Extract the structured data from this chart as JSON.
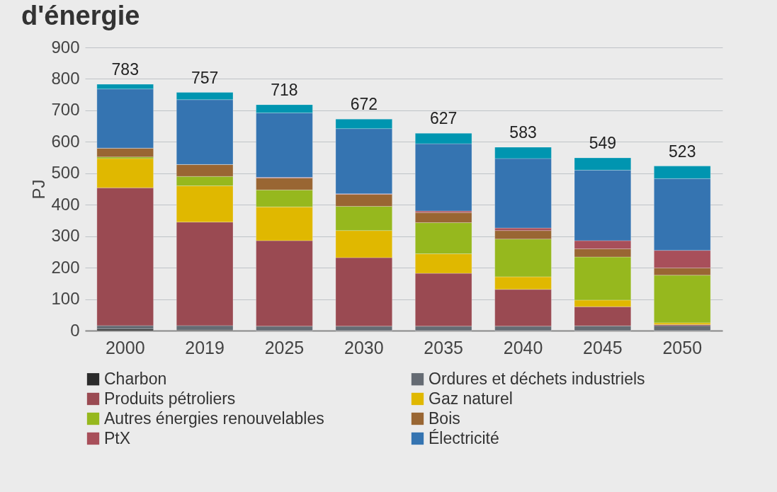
{
  "chart_data": {
    "type": "bar",
    "title": "d'énergie",
    "ylabel": "PJ",
    "categories": [
      "2000",
      "2019",
      "2025",
      "2030",
      "2035",
      "2040",
      "2045",
      "2050"
    ],
    "stacked": true,
    "series": [
      {
        "name": "Charbon",
        "color": "#2b2b2b",
        "values": [
          5,
          2,
          0,
          0,
          0,
          0,
          0,
          0
        ]
      },
      {
        "name": "Ordures et déchets industriels",
        "color": "#656b73",
        "values": [
          11,
          14,
          14,
          14,
          14,
          14,
          15,
          16
        ]
      },
      {
        "name": "Produits pétroliers",
        "color": "#9a4a52",
        "values": [
          438,
          329,
          272,
          218,
          168,
          117,
          61,
          3
        ]
      },
      {
        "name": "Gaz naturel",
        "color": "#e0b800",
        "values": [
          93,
          115,
          107,
          86,
          62,
          40,
          21,
          6
        ]
      },
      {
        "name": "Autres énergies renouvelables",
        "color": "#96b81e",
        "values": [
          5,
          30,
          54,
          77,
          99,
          120,
          137,
          151
        ]
      },
      {
        "name": "Bois",
        "color": "#996633",
        "values": [
          28,
          38,
          38,
          38,
          32,
          27,
          26,
          23
        ]
      },
      {
        "name": "PtX",
        "color": "#a84f5a",
        "values": [
          0,
          0,
          2,
          2,
          5,
          8,
          26,
          56
        ]
      },
      {
        "name": "Électricité",
        "color": "#3574b1",
        "values": [
          188,
          206,
          205,
          207,
          214,
          221,
          224,
          228
        ]
      },
      {
        "color": "#0095b0",
        "values": [
          15,
          23,
          26,
          30,
          33,
          36,
          39,
          40
        ]
      }
    ],
    "totals": [
      "783",
      "757",
      "718",
      "672",
      "627",
      "583",
      "549",
      "523"
    ],
    "ylim": [
      0,
      900
    ],
    "yticks": [
      0,
      100,
      200,
      300,
      400,
      500,
      600,
      700,
      800,
      900
    ],
    "grid": "y",
    "legend": "bottom"
  }
}
